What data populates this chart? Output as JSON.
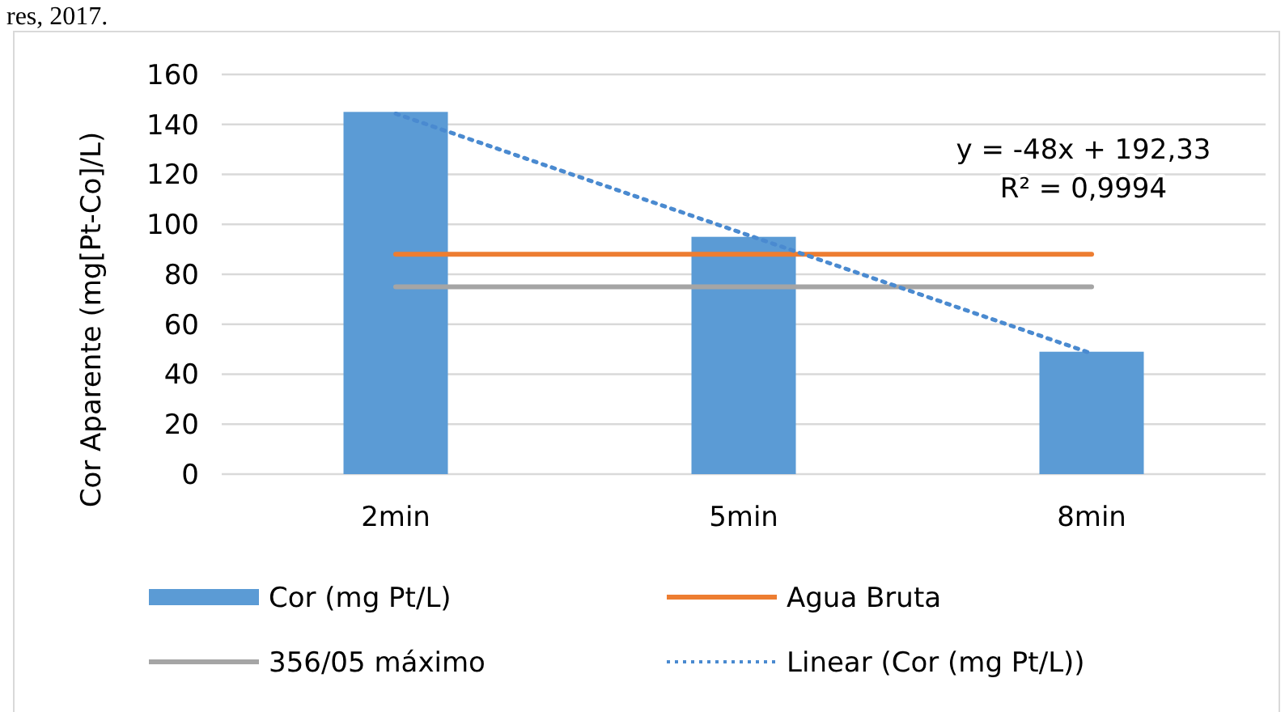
{
  "chart_data": {
    "type": "bar",
    "ylabel": "Cor Aparente (mg[Pt-Co]/L)",
    "categories": [
      "2min",
      "5min",
      "8min"
    ],
    "series": [
      {
        "name": "Cor (mg Pt/L)",
        "color": "#5b9bd5",
        "values": [
          145,
          95,
          49
        ]
      },
      {
        "name": "Agua Bruta",
        "type": "line",
        "color": "#ed7d31",
        "values": [
          88,
          88,
          88
        ]
      },
      {
        "name": "356/05 máximo",
        "type": "line",
        "color": "#a5a5a5",
        "values": [
          75,
          75,
          75
        ]
      },
      {
        "name": "Linear (Cor (mg Pt/L))",
        "type": "line",
        "color": "#4a8ad0",
        "line_style": "dotted",
        "values": [
          144.3,
          96.3,
          48.3
        ]
      }
    ],
    "ylim": [
      0,
      160
    ],
    "yticks": [
      0,
      20,
      40,
      60,
      80,
      100,
      120,
      140,
      160
    ],
    "grid": "y",
    "legend": "bottom",
    "annotations": [
      "y = -48x + 192,33\nR² = 0,9994",
      "res, 2017."
    ]
  }
}
